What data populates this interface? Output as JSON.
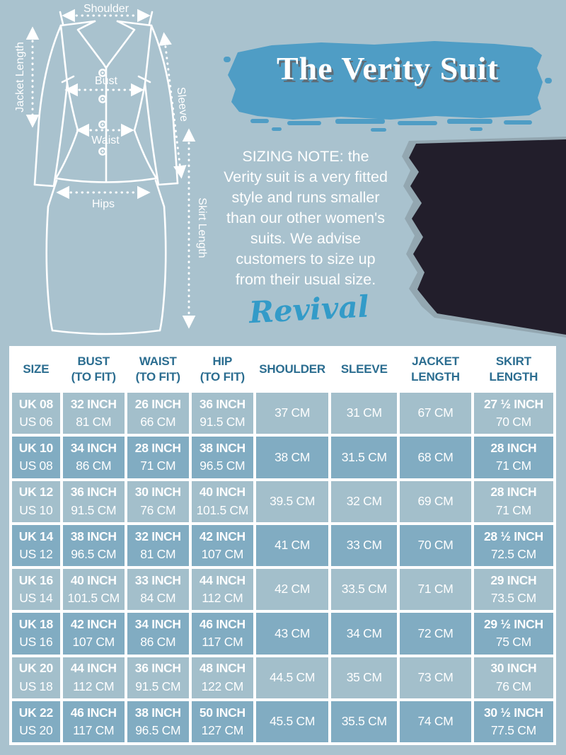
{
  "colors": {
    "page_bg": "#a9c2ce",
    "brush_accent": "#4f9dc5",
    "header_text": "#2b6d90",
    "row_light": "#a3bfcb",
    "row_dark": "#81acc2",
    "cell_text": "#ffffff",
    "swatch_fabric": "#221e2b",
    "brand_blue": "#339bc8"
  },
  "title": {
    "text": "The Verity Suit"
  },
  "diagram": {
    "labels": {
      "shoulder": "Shoulder",
      "jacket_length": "Jacket Length",
      "bust": "Bust",
      "sleeve": "Sleeve",
      "waist": "Waist",
      "hips": "Hips",
      "skirt_length": "Skirt Length"
    }
  },
  "sizing_note": {
    "lines": [
      "SIZING NOTE: the",
      "Verity suit is a very fitted",
      "style and runs smaller",
      "than our other women's",
      "suits. We advise",
      "customers to size up",
      "from their usual size."
    ]
  },
  "brand": {
    "name": "Revival"
  },
  "table": {
    "headers": [
      {
        "l1": "SIZE",
        "l2": ""
      },
      {
        "l1": "BUST",
        "l2": "(TO FIT)"
      },
      {
        "l1": "WAIST",
        "l2": "(TO FIT)"
      },
      {
        "l1": "HIP",
        "l2": "(TO FIT)"
      },
      {
        "l1": "SHOULDER",
        "l2": ""
      },
      {
        "l1": "SLEEVE",
        "l2": ""
      },
      {
        "l1": "JACKET",
        "l2": "LENGTH"
      },
      {
        "l1": "SKIRT",
        "l2": "LENGTH"
      }
    ],
    "rows": [
      {
        "size_uk": "UK 08",
        "size_us": "US 06",
        "bust_in": "32 INCH",
        "bust_cm": "81 CM",
        "waist_in": "26 INCH",
        "waist_cm": "66 CM",
        "hip_in": "36 INCH",
        "hip_cm": "91.5 CM",
        "shoulder": "37 CM",
        "sleeve": "31 CM",
        "jacket": "67 CM",
        "skirt_in": "27 ½ INCH",
        "skirt_cm": "70 CM"
      },
      {
        "size_uk": "UK 10",
        "size_us": "US 08",
        "bust_in": "34 INCH",
        "bust_cm": "86 CM",
        "waist_in": "28 INCH",
        "waist_cm": "71 CM",
        "hip_in": "38 INCH",
        "hip_cm": "96.5 CM",
        "shoulder": "38 CM",
        "sleeve": "31.5 CM",
        "jacket": "68 CM",
        "skirt_in": "28 INCH",
        "skirt_cm": "71 CM"
      },
      {
        "size_uk": "UK 12",
        "size_us": "US 10",
        "bust_in": "36 INCH",
        "bust_cm": "91.5 CM",
        "waist_in": "30 INCH",
        "waist_cm": "76 CM",
        "hip_in": "40 INCH",
        "hip_cm": "101.5 CM",
        "shoulder": "39.5 CM",
        "sleeve": "32 CM",
        "jacket": "69 CM",
        "skirt_in": "28 INCH",
        "skirt_cm": "71 CM"
      },
      {
        "size_uk": "UK 14",
        "size_us": "US 12",
        "bust_in": "38 INCH",
        "bust_cm": "96.5 CM",
        "waist_in": "32 INCH",
        "waist_cm": "81 CM",
        "hip_in": "42 INCH",
        "hip_cm": "107 CM",
        "shoulder": "41 CM",
        "sleeve": "33 CM",
        "jacket": "70 CM",
        "skirt_in": "28 ½ INCH",
        "skirt_cm": "72.5 CM"
      },
      {
        "size_uk": "UK 16",
        "size_us": "US 14",
        "bust_in": "40 INCH",
        "bust_cm": "101.5 CM",
        "waist_in": "33 INCH",
        "waist_cm": "84 CM",
        "hip_in": "44 INCH",
        "hip_cm": "112 CM",
        "shoulder": "42 CM",
        "sleeve": "33.5 CM",
        "jacket": "71 CM",
        "skirt_in": "29 INCH",
        "skirt_cm": "73.5 CM"
      },
      {
        "size_uk": "UK 18",
        "size_us": "US 16",
        "bust_in": "42 INCH",
        "bust_cm": "107 CM",
        "waist_in": "34 INCH",
        "waist_cm": "86 CM",
        "hip_in": "46 INCH",
        "hip_cm": "117 CM",
        "shoulder": "43 CM",
        "sleeve": "34 CM",
        "jacket": "72 CM",
        "skirt_in": "29 ½ INCH",
        "skirt_cm": "75 CM"
      },
      {
        "size_uk": "UK 20",
        "size_us": "US 18",
        "bust_in": "44 INCH",
        "bust_cm": "112 CM",
        "waist_in": "36 INCH",
        "waist_cm": "91.5 CM",
        "hip_in": "48 INCH",
        "hip_cm": "122 CM",
        "shoulder": "44.5 CM",
        "sleeve": "35 CM",
        "jacket": "73 CM",
        "skirt_in": "30 INCH",
        "skirt_cm": "76 CM"
      },
      {
        "size_uk": "UK 22",
        "size_us": "US 20",
        "bust_in": "46 INCH",
        "bust_cm": "117 CM",
        "waist_in": "38 INCH",
        "waist_cm": "96.5 CM",
        "hip_in": "50 INCH",
        "hip_cm": "127 CM",
        "shoulder": "45.5 CM",
        "sleeve": "35.5 CM",
        "jacket": "74 CM",
        "skirt_in": "30 ½ INCH",
        "skirt_cm": "77.5 CM"
      }
    ]
  }
}
